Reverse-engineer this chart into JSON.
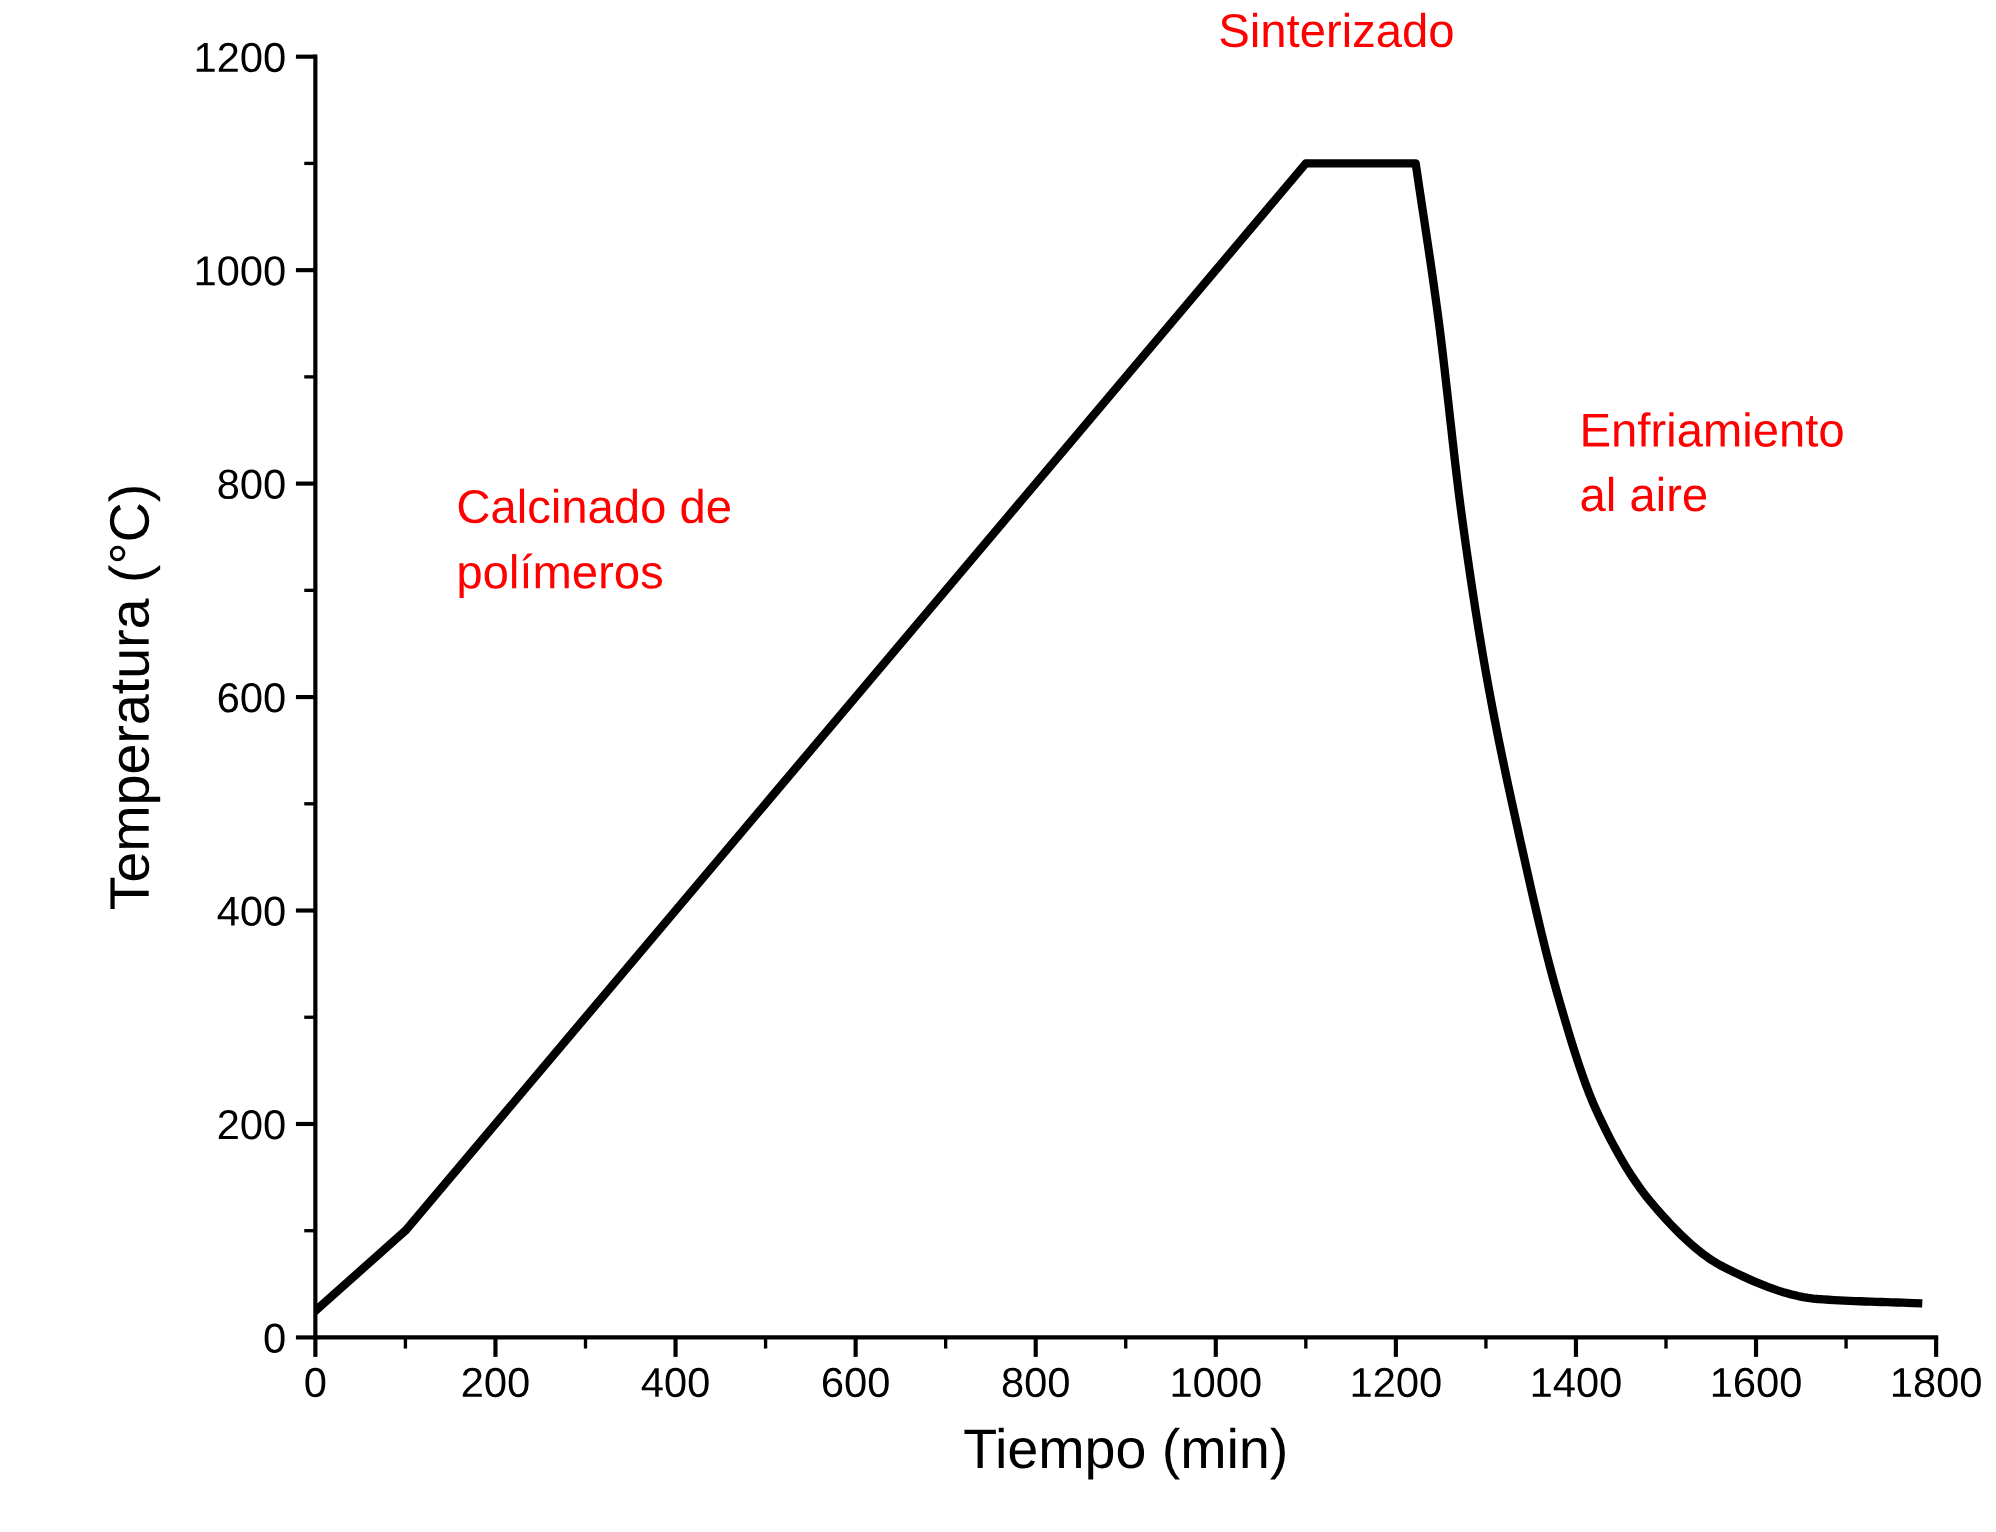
{
  "chart_data": {
    "type": "line",
    "xlabel": "Tiempo (min)",
    "ylabel": "Temperatura (°C)",
    "x": [
      0,
      100,
      1100,
      1222,
      1247,
      1273,
      1300,
      1336,
      1378,
      1422,
      1484,
      1564,
      1669,
      1780
    ],
    "series": [
      {
        "color": "#000000",
        "values": [
          25,
          100,
          1100,
          1100,
          956,
          771,
          623,
          474,
          326,
          214,
          126,
          66,
          36,
          32
        ]
      }
    ],
    "xlim": [
      0,
      1800
    ],
    "ylim": [
      0,
      1200
    ],
    "xticks": [
      0,
      200,
      400,
      600,
      800,
      1000,
      1200,
      1400,
      1600,
      1800
    ],
    "yticks": [
      0,
      200,
      400,
      600,
      800,
      1000,
      1200
    ],
    "grid": false,
    "legend": false,
    "marker": "none",
    "line_style": "solid",
    "annotations": [
      "Sinterizado",
      "Calcinado de\npolímeros",
      "Enfriamiento\nal aire"
    ]
  }
}
